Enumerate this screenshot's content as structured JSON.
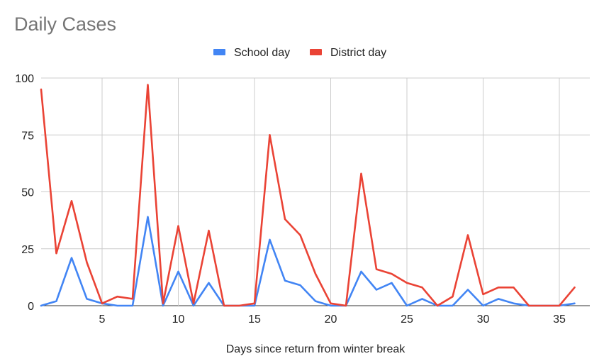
{
  "chart_data": {
    "type": "line",
    "title": "Daily Cases",
    "xlabel": "Days since return from winter break",
    "ylabel": "",
    "xlim": [
      1,
      37
    ],
    "ylim": [
      0,
      100
    ],
    "x_ticks": [
      5,
      10,
      15,
      20,
      25,
      30,
      35
    ],
    "y_ticks": [
      0,
      25,
      50,
      75,
      100
    ],
    "grid": true,
    "legend_position": "top",
    "x": [
      1,
      2,
      3,
      4,
      5,
      6,
      7,
      8,
      9,
      10,
      11,
      12,
      13,
      14,
      15,
      16,
      17,
      18,
      19,
      20,
      21,
      22,
      23,
      24,
      25,
      26,
      27,
      28,
      29,
      30,
      31,
      32,
      33,
      34,
      35,
      36
    ],
    "series": [
      {
        "name": "School day",
        "color": "#4285f4",
        "values": [
          0,
          2,
          21,
          3,
          1,
          0,
          0,
          39,
          0,
          15,
          0,
          10,
          0,
          0,
          0,
          29,
          11,
          9,
          2,
          0,
          0,
          15,
          7,
          10,
          0,
          3,
          0,
          0,
          7,
          0,
          3,
          1,
          0,
          0,
          0,
          1
        ]
      },
      {
        "name": "District day",
        "color": "#ea4335",
        "values": [
          95,
          23,
          46,
          19,
          1,
          4,
          3,
          97,
          1,
          35,
          1,
          33,
          0,
          0,
          1,
          75,
          38,
          31,
          14,
          1,
          0,
          58,
          16,
          14,
          10,
          8,
          0,
          4,
          31,
          5,
          8,
          8,
          0,
          0,
          0,
          8
        ]
      }
    ]
  }
}
